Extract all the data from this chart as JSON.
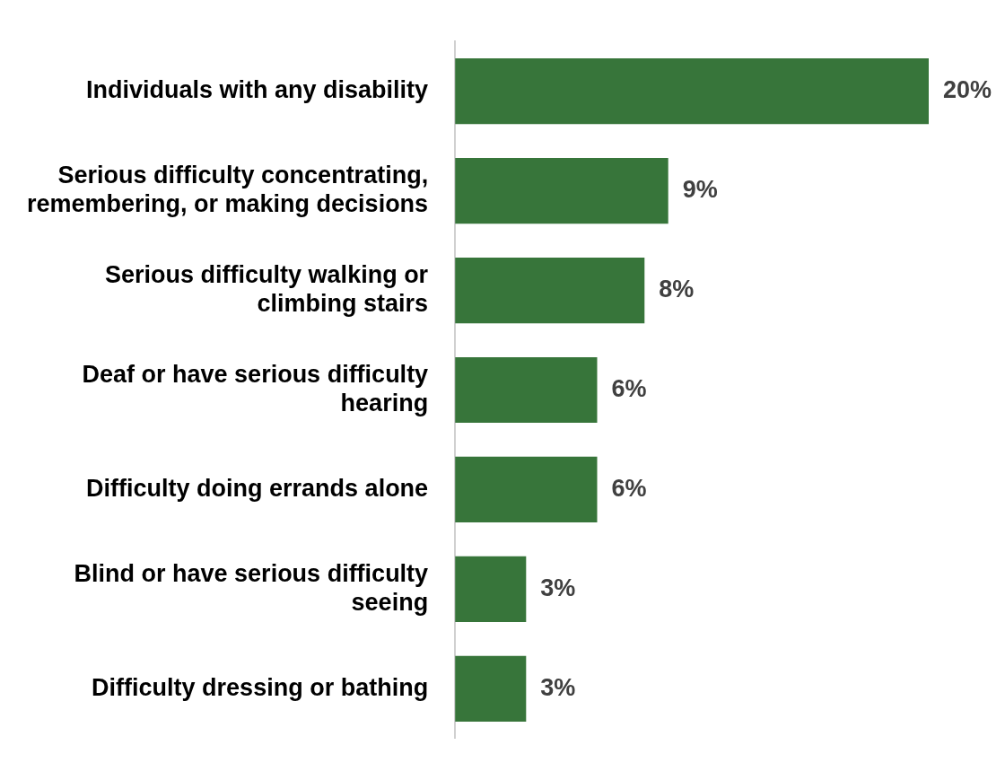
{
  "chart_data": {
    "type": "bar",
    "orientation": "horizontal",
    "categories": [
      "Individuals with any disability",
      "Serious difficulty concentrating, remembering, or making decisions",
      "Serious difficulty walking or climbing stairs",
      "Deaf or have serious difficulty hearing",
      "Difficulty doing errands alone",
      "Blind or have serious difficulty seeing",
      "Difficulty dressing or bathing"
    ],
    "values": [
      20,
      9,
      8,
      6,
      6,
      3,
      3
    ],
    "value_labels": [
      "20%",
      "9%",
      "8%",
      "6%",
      "6%",
      "3%",
      "3%"
    ],
    "color": "#37753a"
  }
}
